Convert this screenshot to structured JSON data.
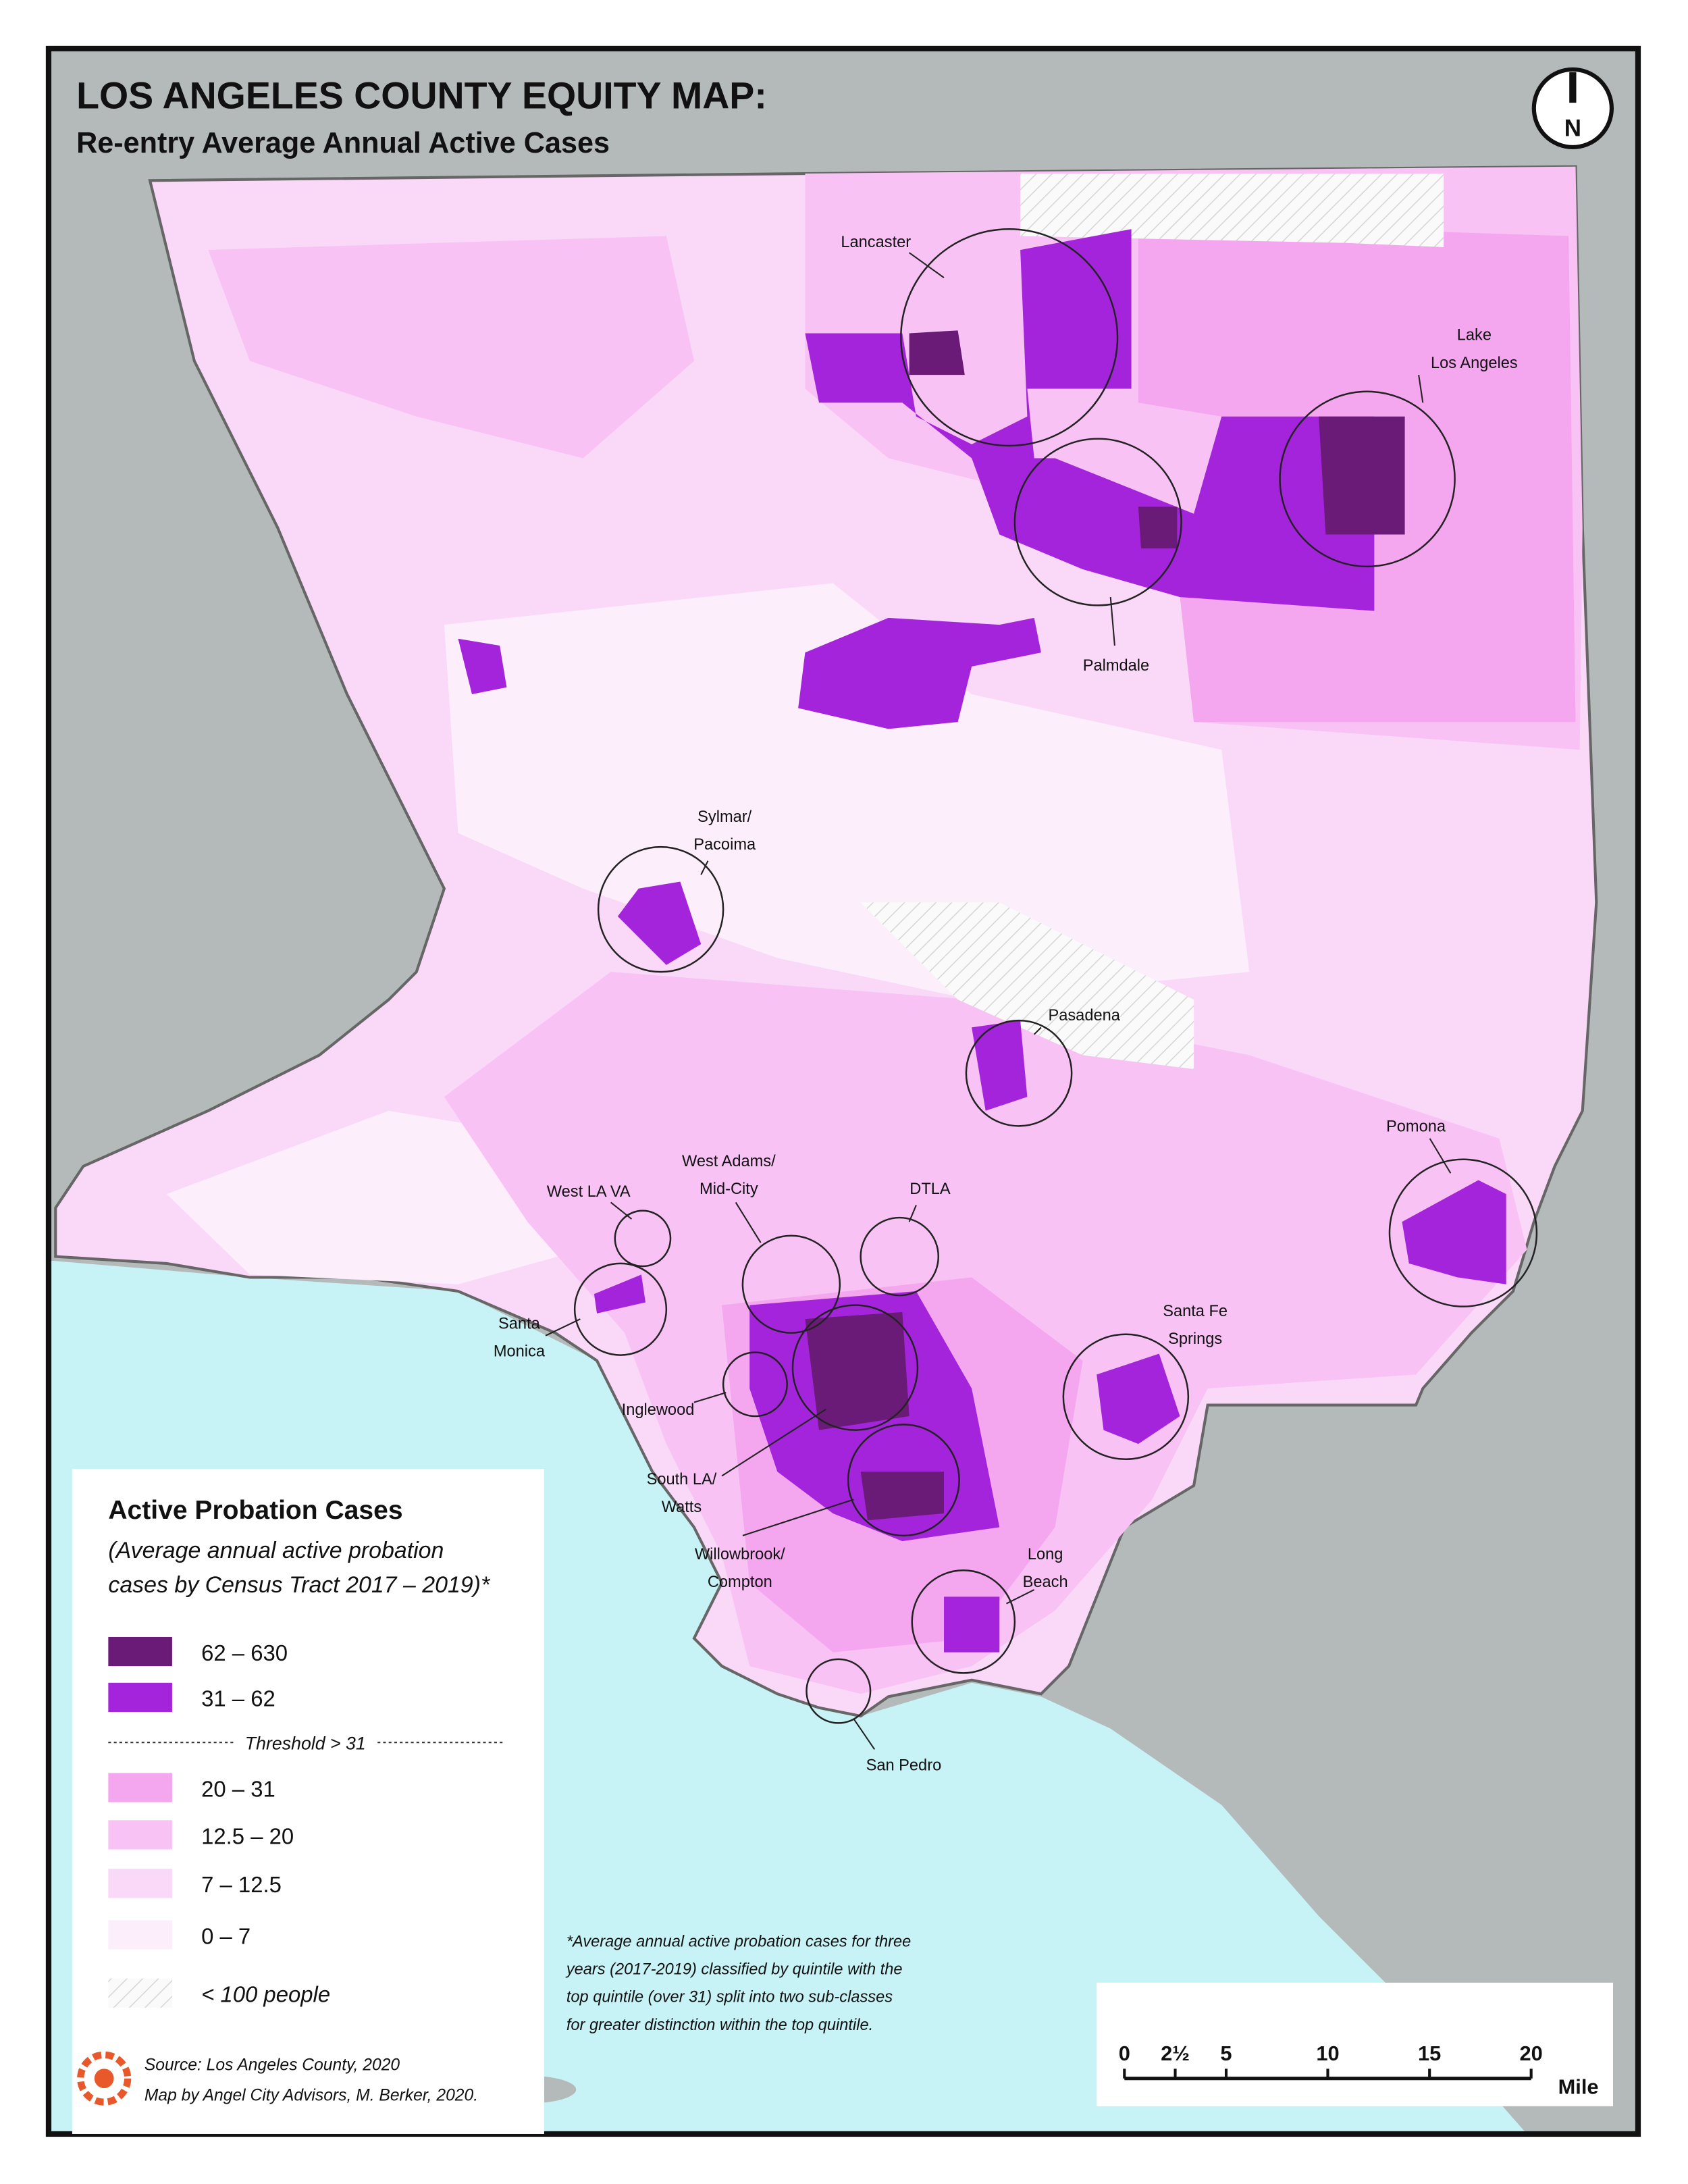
{
  "header": {
    "title": "LOS ANGELES COUNTY EQUITY MAP:",
    "subtitle": "Re-entry Average Annual Active Cases"
  },
  "north_arrow": "N",
  "places": [
    {
      "lines": [
        "Lancaster"
      ]
    },
    {
      "lines": [
        "Lake",
        "Los Angeles"
      ]
    },
    {
      "lines": [
        "Palmdale"
      ]
    },
    {
      "lines": [
        "Sylmar/",
        "Pacoima"
      ]
    },
    {
      "lines": [
        "Pasadena"
      ]
    },
    {
      "lines": [
        "Pomona"
      ]
    },
    {
      "lines": [
        "West Adams/",
        "Mid-City"
      ]
    },
    {
      "lines": [
        "DTLA"
      ]
    },
    {
      "lines": [
        "West LA VA"
      ]
    },
    {
      "lines": [
        "Santa",
        "Monica"
      ]
    },
    {
      "lines": [
        "Santa Fe",
        "Springs"
      ]
    },
    {
      "lines": [
        "Inglewood"
      ]
    },
    {
      "lines": [
        "South LA/",
        "Watts"
      ]
    },
    {
      "lines": [
        "Willowbrook/",
        "Compton"
      ]
    },
    {
      "lines": [
        "Long",
        "Beach"
      ]
    },
    {
      "lines": [
        "San Pedro"
      ]
    }
  ],
  "legend": {
    "title": "Active Probation Cases",
    "description": [
      "(Average annual active probation",
      "cases by Census Tract 2017 – 2019)*"
    ],
    "classes": [
      {
        "label": "62 – 630",
        "color": "#6a1b78"
      },
      {
        "label": "31 – 62",
        "color": "#a424dc"
      },
      {
        "label": "20 – 31",
        "color": "#f4a6ef"
      },
      {
        "label": "12.5 – 20",
        "color": "#f8c2f4"
      },
      {
        "label": "7 – 12.5",
        "color": "#fad8f8"
      },
      {
        "label": "0 – 7",
        "color": "#fdeefc"
      }
    ],
    "threshold": "Threshold > 31",
    "no_data": "< 100 people"
  },
  "footnote": [
    "*Average annual active probation cases for three",
    "years (2017-2019) classified by quintile with the",
    "top quintile (over 31) split into two sub-classes",
    "for greater distinction within the top quintile."
  ],
  "source": "Source: Los Angeles County, 2020",
  "credit": "Map by Angel City Advisors, M. Berker, 2020.",
  "scale_bar": {
    "ticks": [
      "0",
      "2½",
      "5",
      "10",
      "15",
      "20"
    ],
    "unit": "Mile"
  }
}
